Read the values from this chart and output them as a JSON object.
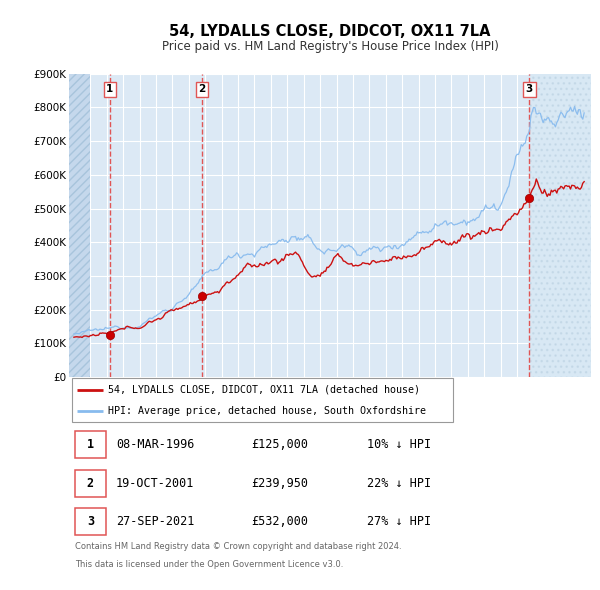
{
  "title": "54, LYDALLS CLOSE, DIDCOT, OX11 7LA",
  "subtitle": "Price paid vs. HM Land Registry's House Price Index (HPI)",
  "background_color": "#ffffff",
  "plot_bg_color": "#dce9f5",
  "grid_color": "#ffffff",
  "hatch_left_end": 1995.0,
  "hatch_right_start": 2021.75,
  "ylim": [
    0,
    900000
  ],
  "ytick_labels": [
    "£0",
    "£100K",
    "£200K",
    "£300K",
    "£400K",
    "£500K",
    "£600K",
    "£700K",
    "£800K",
    "£900K"
  ],
  "ytick_values": [
    0,
    100000,
    200000,
    300000,
    400000,
    500000,
    600000,
    700000,
    800000,
    900000
  ],
  "xlim_start": 1993.7,
  "xlim_end": 2025.5,
  "sale_dates": [
    1996.19,
    2001.8,
    2021.74
  ],
  "sale_prices": [
    125000,
    239950,
    532000
  ],
  "sale_labels": [
    "1",
    "2",
    "3"
  ],
  "vline_color": "#e05555",
  "sale_marker_color": "#cc0000",
  "hpi_line_color": "#88bbee",
  "price_line_color": "#cc1111",
  "legend_entry1": "54, LYDALLS CLOSE, DIDCOT, OX11 7LA (detached house)",
  "legend_entry2": "HPI: Average price, detached house, South Oxfordshire",
  "table_rows": [
    {
      "num": "1",
      "date": "08-MAR-1996",
      "price": "£125,000",
      "pct": "10% ↓ HPI"
    },
    {
      "num": "2",
      "date": "19-OCT-2001",
      "price": "£239,950",
      "pct": "22% ↓ HPI"
    },
    {
      "num": "3",
      "date": "27-SEP-2021",
      "price": "£532,000",
      "pct": "27% ↓ HPI"
    }
  ],
  "footnote1": "Contains HM Land Registry data © Crown copyright and database right 2024.",
  "footnote2": "This data is licensed under the Open Government Licence v3.0."
}
